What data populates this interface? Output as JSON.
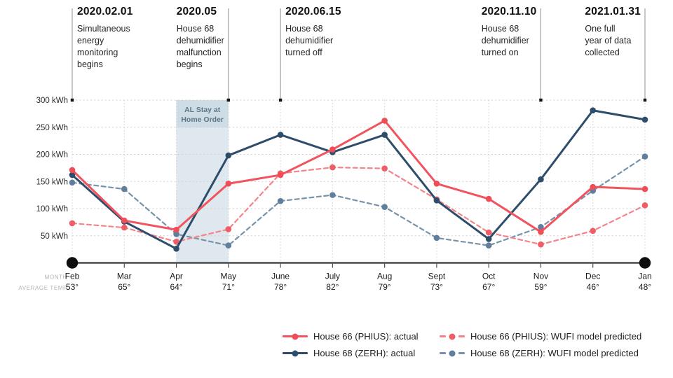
{
  "chart_data": {
    "type": "line",
    "ylim": [
      0,
      300
    ],
    "y_ticks": [
      {
        "value": 300,
        "label": "300 kWh"
      },
      {
        "value": 250,
        "label": "250 kWh"
      },
      {
        "value": 200,
        "label": "200 kWh"
      },
      {
        "value": 150,
        "label": "150 kWh"
      },
      {
        "value": 100,
        "label": "100 kWh"
      },
      {
        "value": 50,
        "label": "50 kWh"
      }
    ],
    "x_categories": [
      "Feb",
      "Mar",
      "Apr",
      "May",
      "June",
      "July",
      "Aug",
      "Sept",
      "Oct",
      "Nov",
      "Dec",
      "Jan"
    ],
    "axis_rows": {
      "month_label": "MONTH",
      "temp_label": "AVERAGE TEMP",
      "temps": [
        "53°",
        "65°",
        "64°",
        "71°",
        "78°",
        "82°",
        "79°",
        "73°",
        "67°",
        "59°",
        "46°",
        "48°"
      ]
    },
    "series": [
      {
        "name": "House 66 (PHIUS): actual",
        "dashed": false,
        "color": "#f1545e",
        "marker_color": "#ef4e58",
        "values": [
          171,
          78,
          61,
          146,
          162,
          209,
          262,
          146,
          118,
          57,
          140,
          136
        ]
      },
      {
        "name": "House 66 (PHIUS): WUFI model predicted",
        "dashed": true,
        "color": "#f4838a",
        "marker_color": "#ef5d66",
        "values": [
          73,
          65,
          39,
          62,
          165,
          176,
          174,
          117,
          56,
          34,
          59,
          106
        ]
      },
      {
        "name": "House 68 (ZERH): actual",
        "dashed": false,
        "color": "#2e4d6b",
        "marker_color": "#2e4d6b",
        "values": [
          162,
          76,
          26,
          198,
          236,
          204,
          236,
          115,
          44,
          154,
          281,
          264
        ]
      },
      {
        "name": "House 68 (ZERH): WUFI model predicted",
        "dashed": true,
        "color": "#7793ab",
        "marker_color": "#5f7f9d",
        "values": [
          148,
          136,
          53,
          32,
          114,
          125,
          103,
          46,
          32,
          66,
          133,
          196
        ]
      }
    ],
    "draw_order": [
      3,
      1,
      2,
      0
    ],
    "band": {
      "label": "AL Stay at\nHome Order",
      "from_month": 2,
      "to_month": 3,
      "fill": "#dfe8ee",
      "label_bg": "#cedde5",
      "label_color": "#5e7787"
    },
    "annotations": [
      {
        "date": "2020.02.01",
        "text": "Simultaneous\nenergy\nmonitoring\nbegins",
        "month_index": 0,
        "align": "left"
      },
      {
        "date": "2020.05",
        "text": "House 68\ndehumidifier\nmalfunction\nbegins",
        "month_index": 3,
        "align": "right"
      },
      {
        "date": "2020.06.15",
        "text": "House 68\ndehumidifier\nturned off",
        "month_index": 4,
        "align": "left"
      },
      {
        "date": "2020.11.10",
        "text": "House 68\ndehumidifier\nturned on",
        "month_index": 9,
        "align": "right"
      },
      {
        "date": "2021.01.31",
        "text": "One full\nyear of data\ncollected",
        "month_index": 11,
        "align": "right"
      }
    ],
    "legend": [
      {
        "label": "House 66 (PHIUS): actual",
        "series": 0
      },
      {
        "label": "House 66 (PHIUS): WUFI model predicted",
        "series": 1
      },
      {
        "label": "House 68 (ZERH): actual",
        "series": 2
      },
      {
        "label": "House 68 (ZERH): WUFI model predicted",
        "series": 3
      }
    ],
    "colors": {
      "grid": "#cfcfcf",
      "axis": "#4a4a4a",
      "axis_dot": "#0e0e0e",
      "annotation_line": "#8f8f8f",
      "annotation_marker": "#151515",
      "tick_label": "#2b2b2b",
      "month_label": "#1b1b1b",
      "row_label": "#b4b4b4"
    }
  }
}
